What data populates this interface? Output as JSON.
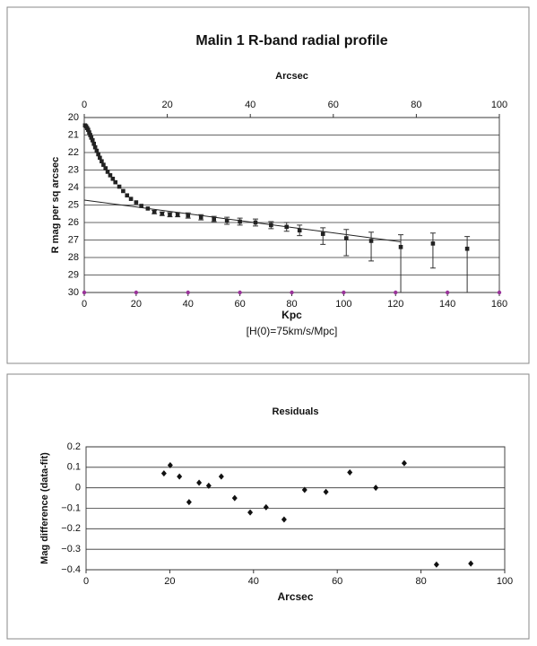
{
  "chart_data": [
    {
      "type": "scatter",
      "title": "Malin 1 R-band radial profile",
      "xlabel": "Kpc",
      "x2label": "Arcsec",
      "ylabel": "R mag per sq arcsec",
      "note": "[H(0)=75km/s/Mpc]",
      "xlim": [
        0,
        160
      ],
      "xticks": [
        0,
        20,
        40,
        60,
        80,
        100,
        120,
        140,
        160
      ],
      "x2lim": [
        0,
        100
      ],
      "x2ticks": [
        0,
        20,
        40,
        60,
        80,
        100
      ],
      "ylim": [
        20,
        30
      ],
      "yticks": [
        20,
        21,
        22,
        23,
        24,
        25,
        26,
        27,
        28,
        29,
        30
      ],
      "invert_y": true,
      "grid": true,
      "series": [
        {
          "color": "#222222",
          "x": [
            0.3,
            0.7,
            1.1,
            1.5,
            1.9,
            2.3,
            2.7,
            3.2,
            3.7,
            4.2,
            4.8,
            5.4,
            6.0,
            6.7,
            7.4,
            8.2,
            9.0,
            10.0,
            11.0,
            12.0,
            13.5,
            15.0,
            16.5,
            18.0,
            20,
            22,
            24.5,
            27,
            30,
            33,
            36,
            40,
            45,
            50,
            55,
            60,
            66,
            72,
            78,
            83,
            92,
            101,
            110.6,
            122,
            134.4,
            147.6
          ],
          "values": [
            20.45,
            20.5,
            20.6,
            20.7,
            20.85,
            21.0,
            21.15,
            21.3,
            21.5,
            21.7,
            21.9,
            22.1,
            22.3,
            22.5,
            22.7,
            22.9,
            23.1,
            23.3,
            23.5,
            23.7,
            23.95,
            24.2,
            24.45,
            24.65,
            24.85,
            25.05,
            25.2,
            25.4,
            25.5,
            25.55,
            25.55,
            25.6,
            25.7,
            25.8,
            25.9,
            25.95,
            26.0,
            26.15,
            26.25,
            26.45,
            26.65,
            26.9,
            27.05,
            27.4,
            27.2,
            27.5
          ],
          "err_up": [
            null,
            null,
            null,
            null,
            null,
            null,
            null,
            null,
            null,
            null,
            null,
            null,
            null,
            null,
            null,
            null,
            null,
            null,
            null,
            null,
            null,
            null,
            null,
            null,
            null,
            null,
            null,
            0.1,
            0.1,
            0.12,
            0.12,
            0.15,
            0.15,
            0.15,
            0.2,
            0.2,
            0.2,
            0.2,
            0.25,
            0.3,
            0.35,
            0.5,
            0.5,
            0.7,
            0.6,
            0.7
          ],
          "err_down": [
            null,
            null,
            null,
            null,
            null,
            null,
            null,
            null,
            null,
            null,
            null,
            null,
            null,
            null,
            null,
            null,
            null,
            null,
            null,
            null,
            null,
            null,
            null,
            null,
            null,
            null,
            null,
            0.1,
            0.1,
            0.12,
            0.12,
            0.15,
            0.15,
            0.15,
            0.2,
            0.2,
            0.2,
            0.2,
            0.25,
            0.3,
            0.6,
            1.0,
            1.15,
            2.6,
            1.4,
            2.5
          ]
        },
        {
          "color": "#993399",
          "x": [
            0,
            20,
            40,
            60,
            80,
            100,
            120,
            140,
            160
          ],
          "values": [
            30,
            30,
            30,
            30,
            30,
            30,
            30,
            30,
            30
          ]
        }
      ],
      "fit": {
        "color": "#222222",
        "x": [
          0,
          122
        ],
        "values": [
          24.72,
          27.1
        ]
      }
    },
    {
      "type": "scatter",
      "title": "Residuals",
      "xlabel": "Arcsec",
      "ylabel": "Mag difference (data-fit)",
      "xlim": [
        0,
        100
      ],
      "xticks": [
        0,
        20,
        40,
        60,
        80,
        100
      ],
      "ylim": [
        -0.4,
        0.2
      ],
      "yticks": [
        0.2,
        0.1,
        0,
        {
          "value": -0.1,
          "label": "−0.1"
        },
        {
          "value": -0.2,
          "label": "−0.2"
        },
        {
          "value": -0.3,
          "label": "−0.3"
        },
        {
          "value": -0.4,
          "label": "−0.4"
        }
      ],
      "grid": true,
      "series": [
        {
          "color": "#111111",
          "x": [
            18.6,
            20.1,
            22.3,
            24.6,
            27.0,
            29.3,
            32.3,
            35.5,
            39.2,
            43.0,
            47.3,
            52.2,
            57.3,
            63.0,
            69.2,
            76.0,
            83.7,
            91.9
          ],
          "values": [
            0.07,
            0.11,
            0.055,
            -0.07,
            0.025,
            0.01,
            0.055,
            -0.05,
            -0.12,
            -0.095,
            -0.155,
            -0.01,
            -0.02,
            0.075,
            0.0,
            0.12,
            -0.375,
            -0.37
          ]
        }
      ]
    }
  ]
}
